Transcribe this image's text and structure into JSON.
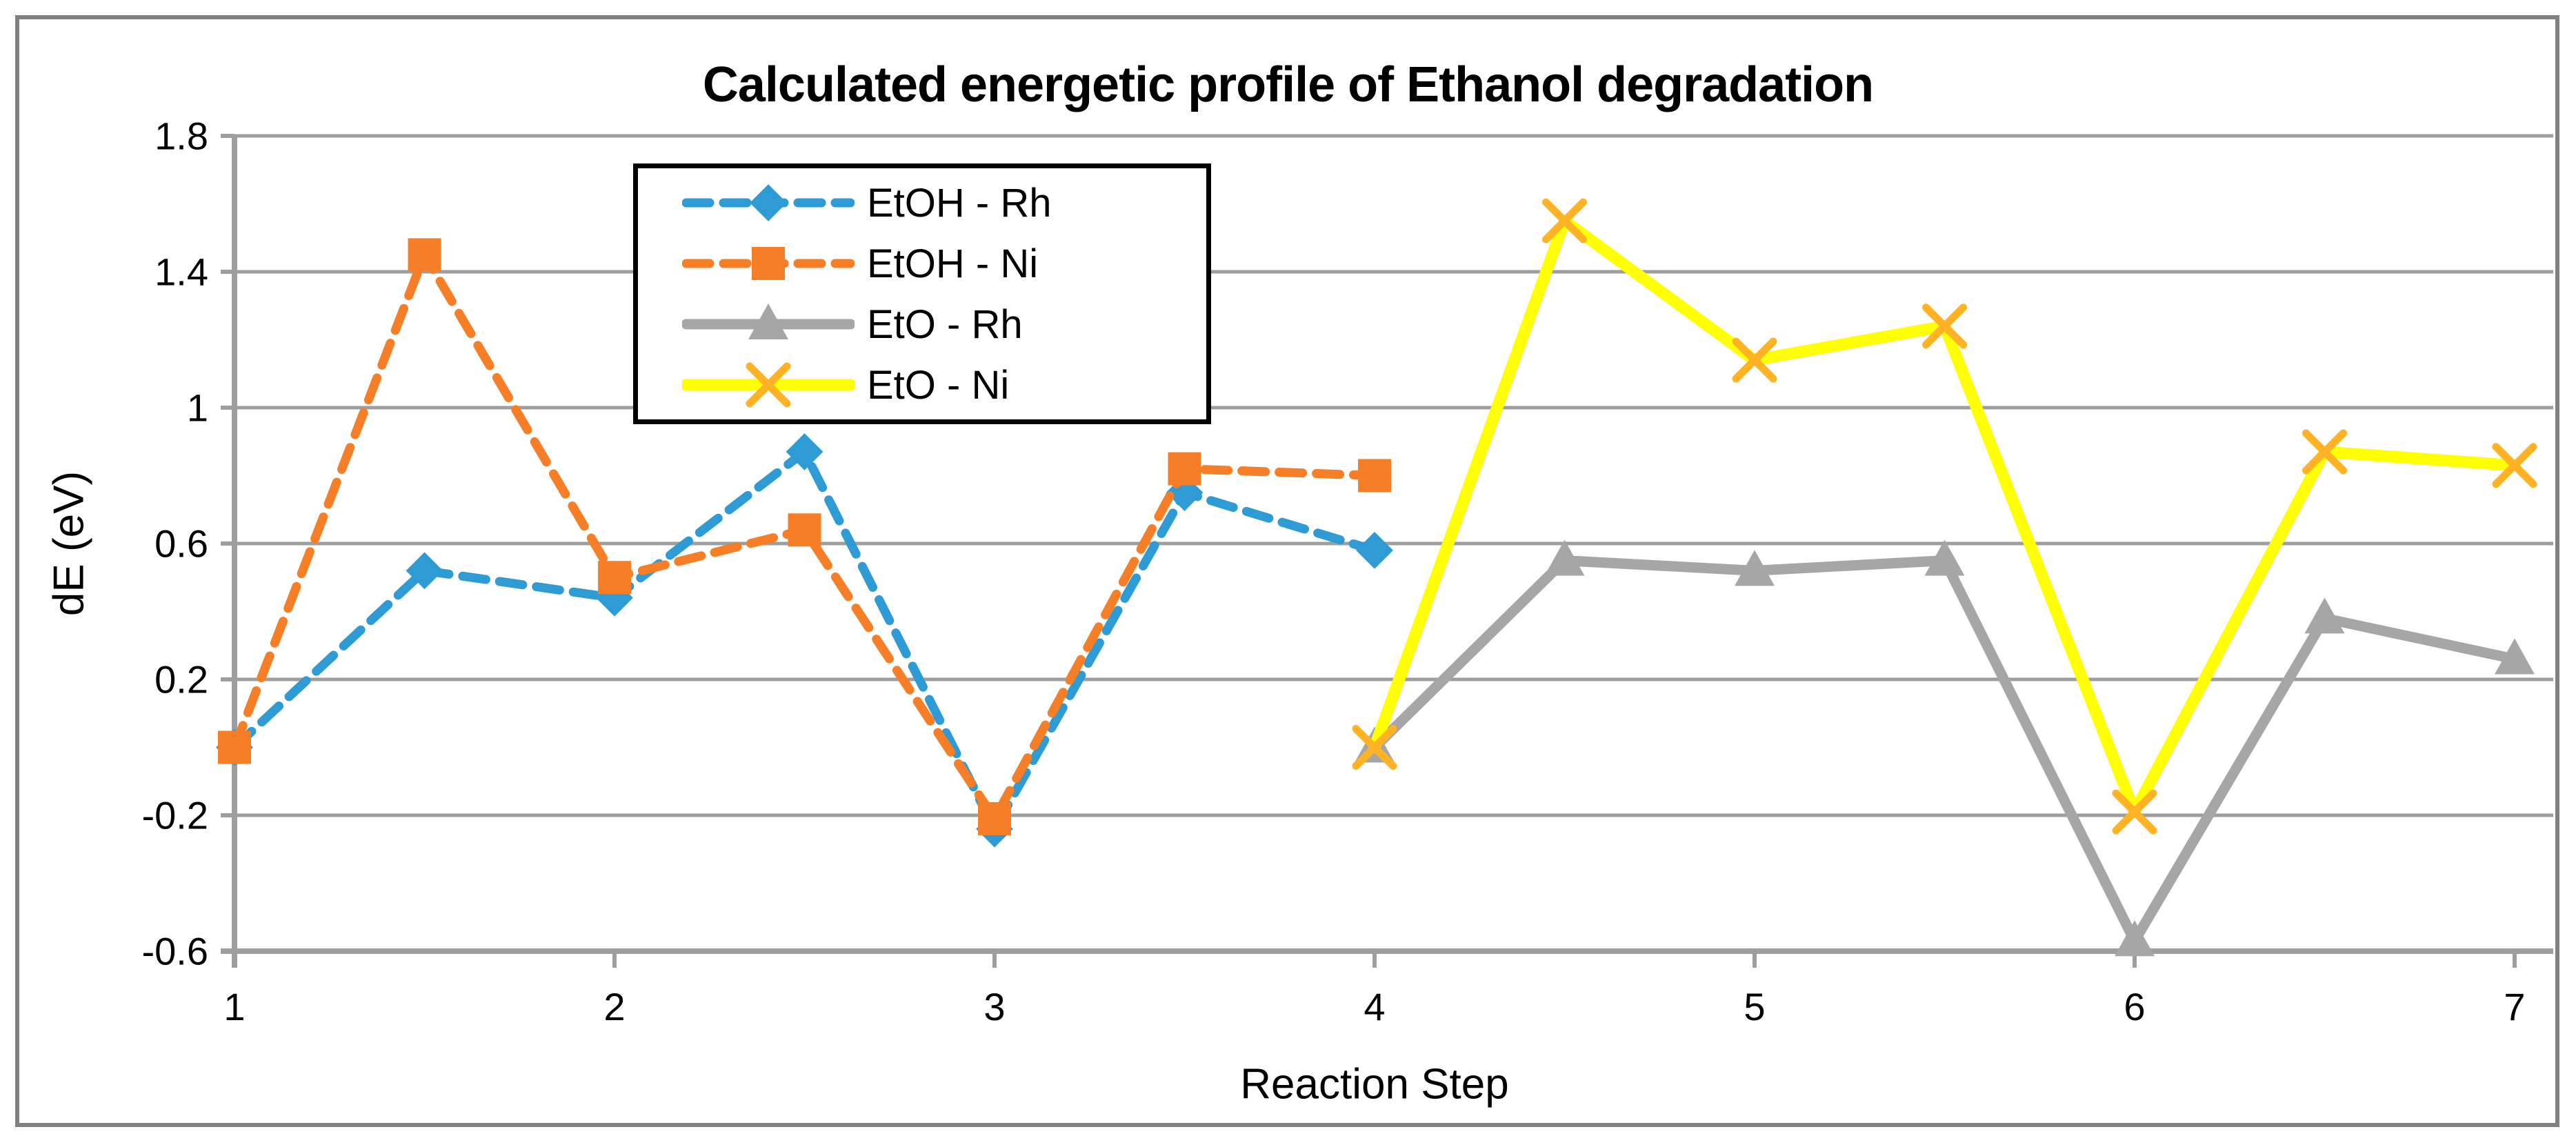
{
  "title": "Calculated energetic profile of Ethanol degradation",
  "axes": {
    "x": {
      "label": "Reaction Step",
      "tick_labels": [
        "1",
        "2",
        "3",
        "4",
        "5",
        "6",
        "7"
      ],
      "tick_values": [
        1,
        2,
        3,
        4,
        5,
        6,
        7
      ],
      "min": 1,
      "max": 7
    },
    "y": {
      "label": "dE (eV)",
      "tick_labels": [
        "1.8",
        "1.4",
        "1",
        "0.6",
        "0.2",
        "-0.2",
        "-0.6"
      ],
      "tick_values": [
        1.8,
        1.4,
        1.0,
        0.6,
        0.2,
        -0.2,
        -0.6
      ],
      "min": -0.6,
      "max": 1.8
    }
  },
  "legend": {
    "items": [
      {
        "label": "EtOH - Rh"
      },
      {
        "label": "EtOH - Ni"
      },
      {
        "label": "EtO - Rh"
      },
      {
        "label": "EtO - Ni"
      }
    ]
  },
  "colors": {
    "frame_border": "#808080",
    "gridline": "#9e9e9e",
    "axis": "#9e9e9e",
    "text": "#000000",
    "legend_border": "#000000"
  },
  "chart_data": {
    "type": "line",
    "title": "Calculated energetic profile of Ethanol degradation",
    "xlabel": "Reaction Step",
    "ylabel": "dE (eV)",
    "xlim": [
      1,
      7
    ],
    "ylim": [
      -0.6,
      1.8
    ],
    "grid": "horizontal",
    "legend_position": "inside-top-left",
    "series": [
      {
        "name": "EtOH - Rh",
        "color": "#2E9BD5",
        "line_style": "dashed",
        "marker": "diamond",
        "x": [
          1,
          1.5,
          2,
          2.5,
          3,
          3.5,
          4
        ],
        "y": [
          0.0,
          0.52,
          0.44,
          0.87,
          -0.24,
          0.75,
          0.58
        ]
      },
      {
        "name": "EtOH - Ni",
        "color": "#F57E27",
        "line_style": "dashed",
        "marker": "square",
        "x": [
          1,
          1.5,
          2,
          2.5,
          3,
          3.5,
          4
        ],
        "y": [
          0.0,
          1.45,
          0.5,
          0.64,
          -0.21,
          0.82,
          0.8
        ]
      },
      {
        "name": "EtO - Rh",
        "color": "#A6A6A6",
        "line_style": "solid",
        "marker": "triangle",
        "x": [
          4,
          4.5,
          5,
          5.5,
          6,
          6.5,
          7
        ],
        "y": [
          0.0,
          0.55,
          0.52,
          0.55,
          -0.57,
          0.38,
          0.26
        ]
      },
      {
        "name": "EtO - Ni",
        "color": "#FFFF00",
        "marker_color": "#FFB224",
        "line_style": "solid",
        "marker": "x",
        "x": [
          4,
          4.5,
          5,
          5.5,
          6,
          6.5,
          7
        ],
        "y": [
          0.0,
          1.55,
          1.14,
          1.24,
          -0.19,
          0.87,
          0.83
        ]
      }
    ]
  }
}
